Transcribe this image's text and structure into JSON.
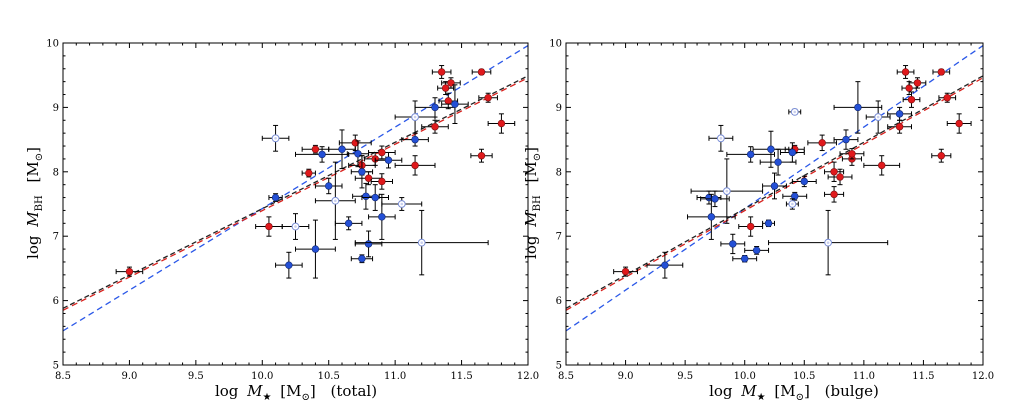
{
  "colors": {
    "red": "#e0191c",
    "blue": "#2450d6",
    "open_edge": "#7b8fd6",
    "open_fill": "#ffffff",
    "open_core": "#c9cfee",
    "fit_blue": "#2b58e8",
    "fit_red": "#d8221e",
    "fit_black": "#222222"
  },
  "chart_data": [
    {
      "type": "scatter",
      "panel": "total",
      "xlabel": "log M★ [M⊙] (total)",
      "ylabel": "log M_BH [M⊙]",
      "xlabel_parts": {
        "log": "log",
        "M": "M",
        "star": "★",
        "unit": "[M",
        "sun": "⊙",
        "close": "]",
        "suffix": "(total)"
      },
      "ylabel_parts": {
        "log": "log",
        "M": "M",
        "sub": "BH",
        "unit": "[M",
        "sun": "⊙",
        "close": "]"
      },
      "xlim": [
        8.5,
        12.0
      ],
      "ylim": [
        5,
        10
      ],
      "xticks": [
        8.5,
        9.0,
        9.5,
        10.0,
        10.5,
        11.0,
        11.5,
        12.0
      ],
      "yticks": [
        5,
        6,
        7,
        8,
        9,
        10
      ],
      "xtick_labels": [
        "8.5",
        "9.0",
        "9.5",
        "10.0",
        "10.5",
        "11.0",
        "11.5",
        "12.0"
      ],
      "ytick_labels": [
        "5",
        "6",
        "7",
        "8",
        "9",
        "10"
      ],
      "fits": [
        {
          "name": "blue-dashed",
          "x": [
            8.5,
            12.0
          ],
          "y": [
            5.53,
            9.96
          ]
        },
        {
          "name": "black-dashed",
          "x": [
            8.5,
            12.0
          ],
          "y": [
            5.88,
            9.49
          ]
        },
        {
          "name": "red-dashed",
          "x": [
            8.5,
            12.0
          ],
          "y": [
            5.85,
            9.46
          ]
        }
      ],
      "series": [
        {
          "name": "red",
          "points": [
            {
              "x": 9.0,
              "y": 6.45,
              "xe": 0.1,
              "ye": 0.07
            },
            {
              "x": 10.05,
              "y": 7.15,
              "xe": 0.1,
              "ye": 0.15
            },
            {
              "x": 10.35,
              "y": 7.98,
              "xe": 0.05,
              "ye": 0.06
            },
            {
              "x": 10.4,
              "y": 8.35,
              "xe": 0.1,
              "ye": 0.06
            },
            {
              "x": 10.7,
              "y": 8.45,
              "xe": 0.12,
              "ye": 0.12
            },
            {
              "x": 10.75,
              "y": 8.1,
              "xe": 0.1,
              "ye": 0.15
            },
            {
              "x": 10.8,
              "y": 7.9,
              "xe": 0.1,
              "ye": 0.1
            },
            {
              "x": 10.85,
              "y": 8.2,
              "xe": 0.08,
              "ye": 0.1
            },
            {
              "x": 10.9,
              "y": 8.3,
              "xe": 0.1,
              "ye": 0.1
            },
            {
              "x": 10.9,
              "y": 7.85,
              "xe": 0.08,
              "ye": 0.12
            },
            {
              "x": 11.15,
              "y": 8.1,
              "xe": 0.15,
              "ye": 0.15
            },
            {
              "x": 11.3,
              "y": 8.7,
              "xe": 0.1,
              "ye": 0.1
            },
            {
              "x": 11.35,
              "y": 9.55,
              "xe": 0.07,
              "ye": 0.1
            },
            {
              "x": 11.38,
              "y": 9.3,
              "xe": 0.06,
              "ye": 0.1
            },
            {
              "x": 11.4,
              "y": 9.1,
              "xe": 0.07,
              "ye": 0.12
            },
            {
              "x": 11.42,
              "y": 9.38,
              "xe": 0.07,
              "ye": 0.08
            },
            {
              "x": 11.65,
              "y": 9.55,
              "xe": 0.07,
              "ye": 0.04
            },
            {
              "x": 11.7,
              "y": 9.15,
              "xe": 0.07,
              "ye": 0.07
            },
            {
              "x": 11.65,
              "y": 8.25,
              "xe": 0.08,
              "ye": 0.1
            },
            {
              "x": 11.8,
              "y": 8.75,
              "xe": 0.1,
              "ye": 0.15
            }
          ]
        },
        {
          "name": "blue",
          "points": [
            {
              "x": 10.1,
              "y": 7.6,
              "xe": 0.05,
              "ye": 0.06
            },
            {
              "x": 10.2,
              "y": 6.55,
              "xe": 0.1,
              "ye": 0.2
            },
            {
              "x": 10.4,
              "y": 6.8,
              "xe": 0.15,
              "ye": 0.45
            },
            {
              "x": 10.45,
              "y": 8.27,
              "xe": 0.2,
              "ye": 0.12
            },
            {
              "x": 10.5,
              "y": 7.78,
              "xe": 0.1,
              "ye": 0.12
            },
            {
              "x": 10.6,
              "y": 8.35,
              "xe": 0.1,
              "ye": 0.3
            },
            {
              "x": 10.65,
              "y": 7.2,
              "xe": 0.1,
              "ye": 0.1
            },
            {
              "x": 10.72,
              "y": 8.28,
              "xe": 0.08,
              "ye": 0.2
            },
            {
              "x": 10.75,
              "y": 8.0,
              "xe": 0.08,
              "ye": 0.25
            },
            {
              "x": 10.78,
              "y": 7.62,
              "xe": 0.1,
              "ye": 0.2
            },
            {
              "x": 10.8,
              "y": 6.88,
              "xe": 0.1,
              "ye": 0.2
            },
            {
              "x": 10.75,
              "y": 6.65,
              "xe": 0.08,
              "ye": 0.06
            },
            {
              "x": 10.85,
              "y": 7.6,
              "xe": 0.1,
              "ye": 0.2
            },
            {
              "x": 10.9,
              "y": 7.3,
              "xe": 0.1,
              "ye": 0.35
            },
            {
              "x": 10.95,
              "y": 8.18,
              "xe": 0.1,
              "ye": 0.12
            },
            {
              "x": 11.15,
              "y": 8.5,
              "xe": 0.1,
              "ye": 0.1
            },
            {
              "x": 11.3,
              "y": 9.0,
              "xe": 0.15,
              "ye": 0.15
            },
            {
              "x": 11.45,
              "y": 9.05,
              "xe": 0.1,
              "ye": 0.3
            }
          ]
        },
        {
          "name": "open",
          "points": [
            {
              "x": 10.1,
              "y": 8.52,
              "xe": 0.1,
              "ye": 0.2
            },
            {
              "x": 10.25,
              "y": 7.15,
              "xe": 0.1,
              "ye": 0.2
            },
            {
              "x": 10.55,
              "y": 7.55,
              "xe": 0.15,
              "ye": 0.6
            },
            {
              "x": 11.05,
              "y": 7.5,
              "xe": 0.15,
              "ye": 0.1
            },
            {
              "x": 11.2,
              "y": 6.9,
              "xe": 0.5,
              "ye": 0.5
            },
            {
              "x": 11.15,
              "y": 8.85,
              "xe": 0.15,
              "ye": 0.25
            }
          ]
        }
      ]
    },
    {
      "type": "scatter",
      "panel": "bulge",
      "xlabel": "log M★ [M⊙] (bulge)",
      "ylabel": "log M_BH [M⊙]",
      "xlabel_parts": {
        "log": "log",
        "M": "M",
        "star": "★",
        "unit": "[M",
        "sun": "⊙",
        "close": "]",
        "suffix": "(bulge)"
      },
      "ylabel_parts": {
        "log": "log",
        "M": "M",
        "sub": "BH",
        "unit": "[M",
        "sun": "⊙",
        "close": "]"
      },
      "xlim": [
        8.5,
        12.0
      ],
      "ylim": [
        5,
        10
      ],
      "xticks": [
        8.5,
        9.0,
        9.5,
        10.0,
        10.5,
        11.0,
        11.5,
        12.0
      ],
      "yticks": [
        5,
        6,
        7,
        8,
        9,
        10
      ],
      "xtick_labels": [
        "8.5",
        "9.0",
        "9.5",
        "10.0",
        "10.5",
        "11.0",
        "11.5",
        "12.0"
      ],
      "ytick_labels": [
        "5",
        "6",
        "7",
        "8",
        "9",
        "10"
      ],
      "fits": [
        {
          "name": "blue-dashed",
          "x": [
            8.5,
            12.0
          ],
          "y": [
            5.53,
            9.96
          ]
        },
        {
          "name": "black-dashed",
          "x": [
            8.5,
            12.0
          ],
          "y": [
            5.88,
            9.49
          ]
        },
        {
          "name": "red-dashed",
          "x": [
            8.5,
            12.0
          ],
          "y": [
            5.85,
            9.46
          ]
        }
      ],
      "series": [
        {
          "name": "red",
          "points": [
            {
              "x": 9.0,
              "y": 6.45,
              "xe": 0.1,
              "ye": 0.07
            },
            {
              "x": 10.05,
              "y": 7.15,
              "xe": 0.1,
              "ye": 0.15
            },
            {
              "x": 10.42,
              "y": 8.35,
              "xe": 0.08,
              "ye": 0.06
            },
            {
              "x": 10.65,
              "y": 8.45,
              "xe": 0.12,
              "ye": 0.12
            },
            {
              "x": 10.75,
              "y": 8.0,
              "xe": 0.08,
              "ye": 0.15
            },
            {
              "x": 10.75,
              "y": 7.65,
              "xe": 0.08,
              "ye": 0.12
            },
            {
              "x": 10.8,
              "y": 7.92,
              "xe": 0.1,
              "ye": 0.12
            },
            {
              "x": 10.9,
              "y": 8.2,
              "xe": 0.08,
              "ye": 0.1
            },
            {
              "x": 10.9,
              "y": 8.28,
              "xe": 0.1,
              "ye": 0.08
            },
            {
              "x": 11.15,
              "y": 8.1,
              "xe": 0.15,
              "ye": 0.15
            },
            {
              "x": 11.3,
              "y": 8.7,
              "xe": 0.1,
              "ye": 0.1
            },
            {
              "x": 11.35,
              "y": 9.55,
              "xe": 0.07,
              "ye": 0.1
            },
            {
              "x": 11.38,
              "y": 9.3,
              "xe": 0.06,
              "ye": 0.1
            },
            {
              "x": 11.4,
              "y": 9.12,
              "xe": 0.07,
              "ye": 0.12
            },
            {
              "x": 11.45,
              "y": 9.38,
              "xe": 0.07,
              "ye": 0.08
            },
            {
              "x": 11.65,
              "y": 9.55,
              "xe": 0.07,
              "ye": 0.04
            },
            {
              "x": 11.7,
              "y": 9.15,
              "xe": 0.07,
              "ye": 0.07
            },
            {
              "x": 11.65,
              "y": 8.25,
              "xe": 0.08,
              "ye": 0.1
            },
            {
              "x": 11.8,
              "y": 8.75,
              "xe": 0.1,
              "ye": 0.15
            }
          ]
        },
        {
          "name": "blue",
          "points": [
            {
              "x": 9.33,
              "y": 6.55,
              "xe": 0.15,
              "ye": 0.2
            },
            {
              "x": 9.7,
              "y": 7.6,
              "xe": 0.1,
              "ye": 0.1
            },
            {
              "x": 9.72,
              "y": 7.3,
              "xe": 0.2,
              "ye": 0.35
            },
            {
              "x": 9.75,
              "y": 7.58,
              "xe": 0.12,
              "ye": 0.12
            },
            {
              "x": 9.9,
              "y": 6.88,
              "xe": 0.1,
              "ye": 0.15
            },
            {
              "x": 10.0,
              "y": 6.65,
              "xe": 0.1,
              "ye": 0.05
            },
            {
              "x": 10.05,
              "y": 8.27,
              "xe": 0.2,
              "ye": 0.12
            },
            {
              "x": 10.1,
              "y": 6.78,
              "xe": 0.1,
              "ye": 0.06
            },
            {
              "x": 10.2,
              "y": 7.2,
              "xe": 0.05,
              "ye": 0.05
            },
            {
              "x": 10.22,
              "y": 8.35,
              "xe": 0.15,
              "ye": 0.28
            },
            {
              "x": 10.25,
              "y": 7.78,
              "xe": 0.1,
              "ye": 0.2
            },
            {
              "x": 10.28,
              "y": 8.15,
              "xe": 0.15,
              "ye": 0.2
            },
            {
              "x": 10.4,
              "y": 8.3,
              "xe": 0.1,
              "ye": 0.15
            },
            {
              "x": 10.42,
              "y": 7.62,
              "xe": 0.1,
              "ye": 0.06
            },
            {
              "x": 10.5,
              "y": 7.85,
              "xe": 0.1,
              "ye": 0.08
            },
            {
              "x": 10.85,
              "y": 8.5,
              "xe": 0.1,
              "ye": 0.15
            },
            {
              "x": 10.95,
              "y": 9.0,
              "xe": 0.2,
              "ye": 0.4
            },
            {
              "x": 11.3,
              "y": 8.9,
              "xe": 0.1,
              "ye": 0.1
            }
          ]
        },
        {
          "name": "open",
          "points": [
            {
              "x": 9.8,
              "y": 8.52,
              "xe": 0.1,
              "ye": 0.2
            },
            {
              "x": 9.85,
              "y": 7.7,
              "xe": 0.3,
              "ye": 0.5
            },
            {
              "x": 10.42,
              "y": 8.93,
              "xe": 0.05,
              "ye": 0.04
            },
            {
              "x": 10.4,
              "y": 7.5,
              "xe": 0.05,
              "ye": 0.08
            },
            {
              "x": 10.7,
              "y": 6.9,
              "xe": 0.5,
              "ye": 0.5
            },
            {
              "x": 11.12,
              "y": 8.85,
              "xe": 0.1,
              "ye": 0.25
            }
          ]
        }
      ]
    }
  ]
}
